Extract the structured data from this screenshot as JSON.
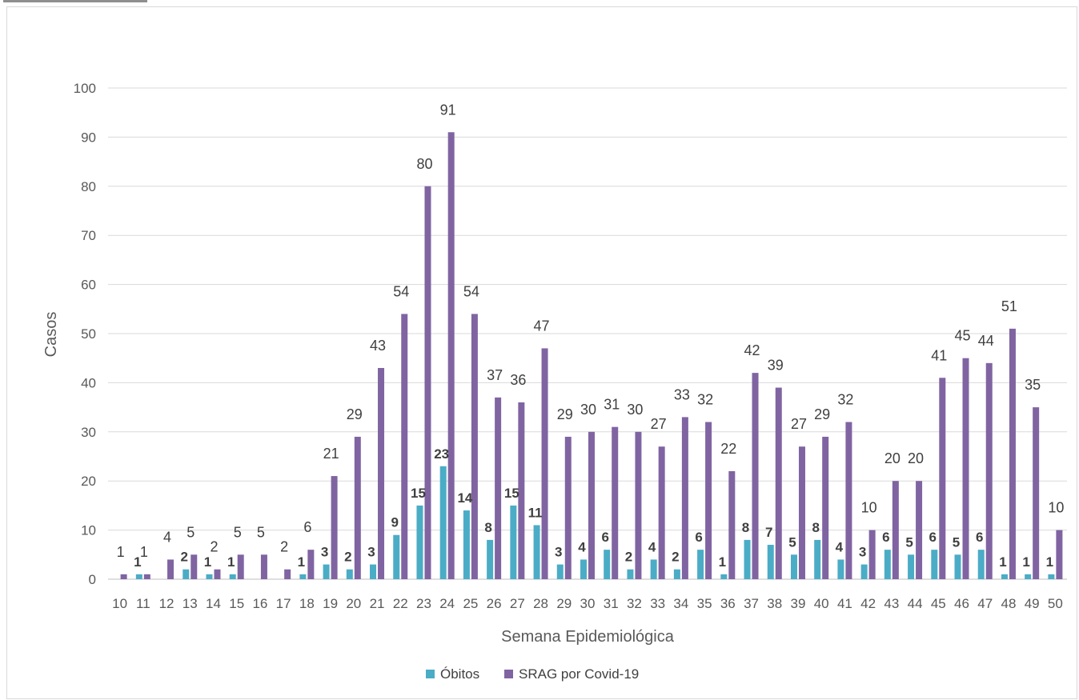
{
  "chart_data": {
    "type": "bar",
    "title": "",
    "xlabel": "Semana Epidemiológica",
    "ylabel": "Casos",
    "ylim": [
      0,
      100
    ],
    "yticks": [
      0,
      10,
      20,
      30,
      40,
      50,
      60,
      70,
      80,
      90,
      100
    ],
    "grid": true,
    "legend_position": "bottom",
    "categories": [
      "10",
      "11",
      "12",
      "13",
      "14",
      "15",
      "16",
      "17",
      "18",
      "19",
      "20",
      "21",
      "22",
      "23",
      "24",
      "25",
      "26",
      "27",
      "28",
      "29",
      "30",
      "31",
      "32",
      "33",
      "34",
      "35",
      "36",
      "37",
      "38",
      "39",
      "40",
      "41",
      "42",
      "43",
      "44",
      "45",
      "46",
      "47",
      "48",
      "49",
      "50"
    ],
    "series": [
      {
        "name": "Óbitos",
        "color": "#4BACC6",
        "values": [
          0,
          1,
          0,
          2,
          1,
          1,
          0,
          0,
          1,
          3,
          2,
          3,
          9,
          15,
          23,
          14,
          8,
          15,
          11,
          3,
          4,
          6,
          2,
          4,
          2,
          6,
          1,
          8,
          7,
          5,
          8,
          4,
          3,
          6,
          5,
          6,
          5,
          6,
          1,
          1,
          1
        ]
      },
      {
        "name": "SRAG por Covid-19",
        "color": "#8064A2",
        "values": [
          1,
          1,
          4,
          5,
          2,
          5,
          5,
          2,
          6,
          21,
          29,
          43,
          54,
          80,
          91,
          54,
          37,
          36,
          47,
          29,
          30,
          31,
          30,
          27,
          33,
          32,
          22,
          42,
          39,
          27,
          29,
          32,
          10,
          20,
          20,
          41,
          45,
          44,
          51,
          35,
          10
        ]
      }
    ]
  }
}
